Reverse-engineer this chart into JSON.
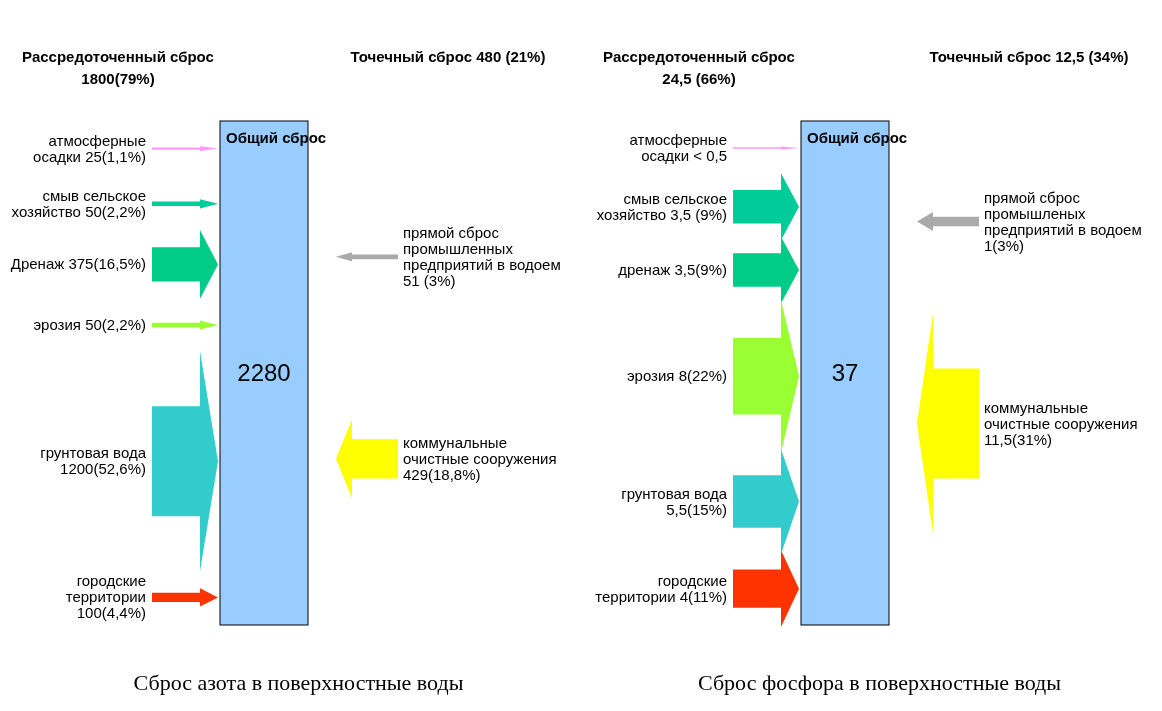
{
  "chart_data": [
    {
      "type": "other",
      "title": "Сброс азота в поверхностные воды",
      "categories": [
        "атмосферные осадки",
        "смыв сельское хозяйство",
        "Дренаж",
        "эрозия",
        "грунтовая вода",
        "городские территории",
        "прямой сброс промышленных предприятий в водоем",
        "коммунальные очистные сооружения"
      ],
      "series": [
        {
          "name": "Рассредоточенный сброс 1800(79%)",
          "values": [
            25,
            50,
            375,
            50,
            1200,
            100,
            null,
            null
          ],
          "value_labels": [
            "25(1,1%)",
            "50(2,2%)",
            "375(16,5%)",
            "50(2,2%)",
            "1200(52,6%)",
            "100(4,4%)",
            null,
            null
          ]
        },
        {
          "name": "Точечный сброс 480 (21%)",
          "values": [
            null,
            null,
            null,
            null,
            null,
            null,
            51,
            429
          ],
          "value_labels": [
            null,
            null,
            null,
            null,
            null,
            null,
            "51 (3%)",
            "429(18,8%)"
          ]
        }
      ],
      "colors": [
        "#ff99ff",
        "#00cc99",
        "#00cc88",
        "#99ff33",
        "#33cccc",
        "#ff3300",
        "#aaaaaa",
        "#ffff00"
      ],
      "annotations": [
        "Общий сброс",
        "2280"
      ]
    },
    {
      "type": "other",
      "title": "Сброс фосфора в поверхностные воды",
      "categories": [
        "атмосферные осадки",
        "смыв сельское хозяйство",
        "дренаж",
        "эрозия",
        "грунтовая вода",
        "городские территории",
        "прямой сброс промышленых предприятий в водоем",
        "коммунальные очистные сооружения"
      ],
      "series": [
        {
          "name": "Рассредоточенный сброс 24,5 (66%)",
          "values": [
            null,
            3.5,
            3.5,
            8,
            5.5,
            4,
            null,
            null
          ],
          "value_labels": [
            "< 0,5",
            "3,5 (9%)",
            "3,5(9%)",
            "8(22%)",
            "5,5(15%)",
            "4(11%)",
            null,
            null
          ]
        },
        {
          "name": "Точечный сброс 12,5 (34%)",
          "values": [
            null,
            null,
            null,
            null,
            null,
            null,
            1,
            11.5
          ],
          "value_labels": [
            null,
            null,
            null,
            null,
            null,
            null,
            "1(3%)",
            "11,5(31%)"
          ]
        }
      ],
      "colors": [
        "#ff99ff",
        "#00cc99",
        "#00cc88",
        "#99ff33",
        "#33cccc",
        "#ff3300",
        "#aaaaaa",
        "#ffff00"
      ],
      "annotations": [
        "Общий сброс",
        "37"
      ]
    }
  ]
}
